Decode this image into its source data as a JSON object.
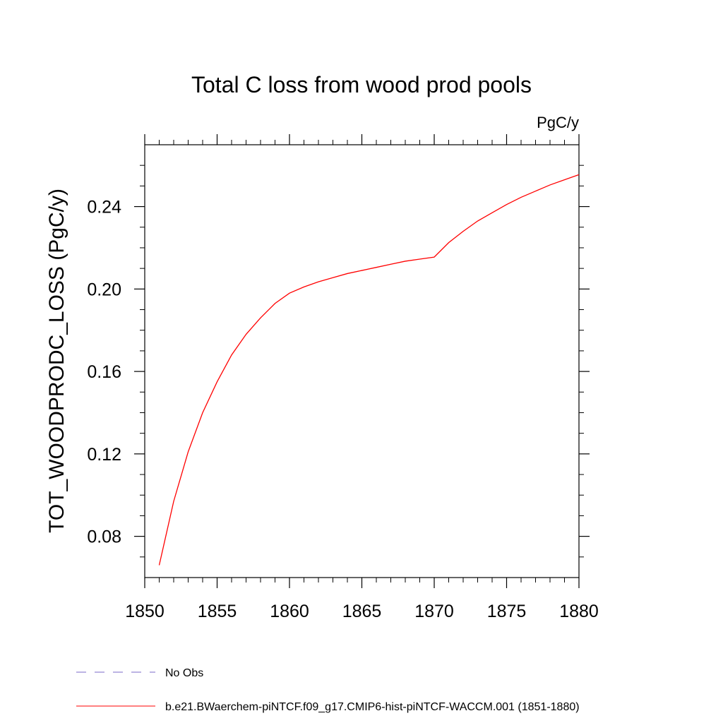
{
  "chart_data": {
    "type": "line",
    "title": "Total C loss from wood prod pools",
    "units_label": "PgC/y",
    "xlabel": "",
    "ylabel": "TOT_WOODPRODC_LOSS  (PgC/y)",
    "xlim": [
      1850,
      1880
    ],
    "ylim": [
      0.06,
      0.27
    ],
    "x_ticks": [
      1850,
      1855,
      1860,
      1865,
      1870,
      1875,
      1880
    ],
    "x_tick_labels": [
      "1850",
      "1855",
      "1860",
      "1865",
      "1870",
      "1875",
      "1880"
    ],
    "y_ticks": [
      0.08,
      0.12,
      0.16,
      0.2,
      0.24
    ],
    "y_tick_labels": [
      "0.08",
      "0.12",
      "0.16",
      "0.20",
      "0.24"
    ],
    "grid": false,
    "legend_position": "bottom",
    "x": [
      1851,
      1852,
      1853,
      1854,
      1855,
      1856,
      1857,
      1858,
      1859,
      1860,
      1861,
      1862,
      1863,
      1864,
      1865,
      1866,
      1867,
      1868,
      1869,
      1870,
      1871,
      1872,
      1873,
      1874,
      1875,
      1876,
      1877,
      1878,
      1879,
      1880
    ],
    "series": [
      {
        "name": "b.e21.BWaerchem-piNTCF.f09_g17.CMIP6-hist-piNTCF-WACCM.001 (1851-1880)",
        "color": "#ff0000",
        "dash": "solid",
        "values": [
          0.066,
          0.097,
          0.121,
          0.14,
          0.155,
          0.168,
          0.178,
          0.186,
          0.193,
          0.198,
          0.201,
          0.2035,
          0.2055,
          0.2075,
          0.209,
          0.2105,
          0.212,
          0.2135,
          0.2145,
          0.2155,
          0.2225,
          0.228,
          0.233,
          0.237,
          0.241,
          0.2445,
          0.2475,
          0.2505,
          0.253,
          0.2555
        ]
      }
    ],
    "legend": [
      {
        "label": "No Obs",
        "color": "#7b68c8",
        "dash": "dashed"
      },
      {
        "label": "b.e21.BWaerchem-piNTCF.f09_g17.CMIP6-hist-piNTCF-WACCM.001 (1851-1880)",
        "color": "#ff0000",
        "dash": "solid"
      }
    ]
  }
}
